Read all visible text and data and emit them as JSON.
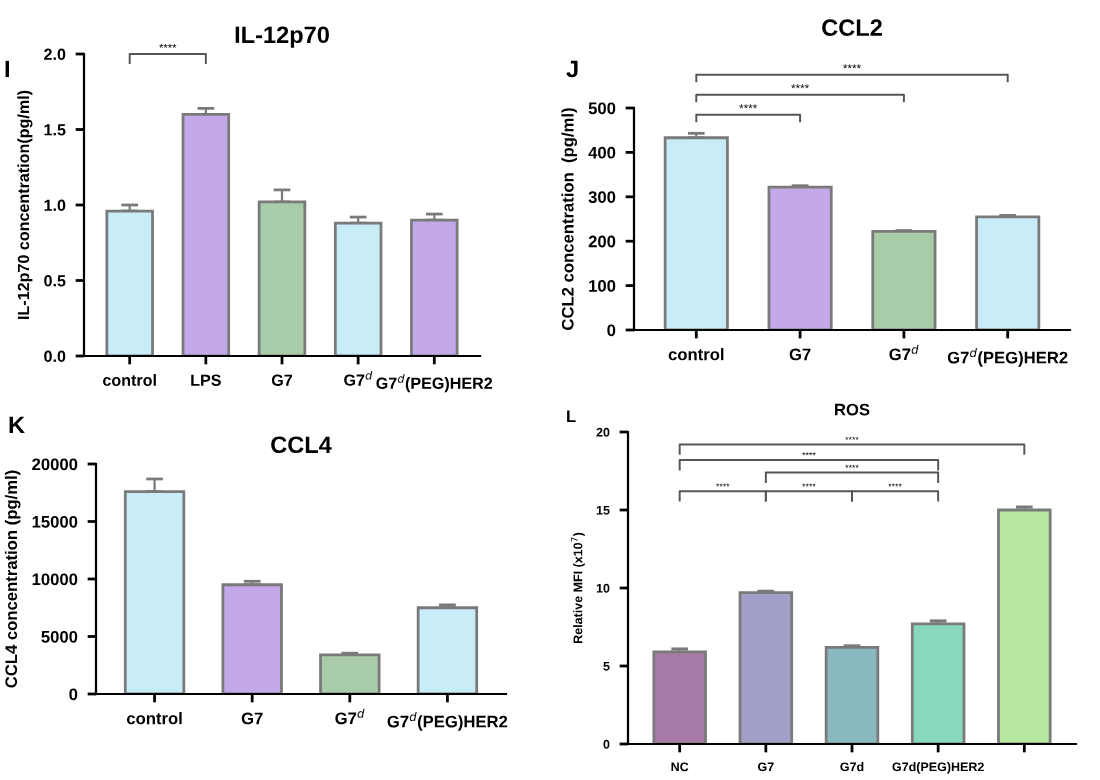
{
  "chart_data": [
    {
      "type": "bar",
      "title": "IL-12p70",
      "ylabel": "IL-12p70 concentration(pg/ml)",
      "categories": [
        "control",
        "LPS",
        "G7",
        "G7$^{d}$",
        "G7$^{d}$(PEG)HER2"
      ],
      "values": [
        0.96,
        1.6,
        1.02,
        0.88,
        0.9
      ],
      "errors": [
        0.04,
        0.04,
        0.08,
        0.04,
        0.04
      ],
      "colors": [
        "#c8ecf8",
        "#c3a9ea",
        "#a8cca8",
        "#c8ecf8",
        "#c3a9ea"
      ],
      "ylim": [
        0,
        2
      ],
      "yticks": [
        {
          "value": 0,
          "label": "0.0"
        },
        0.5,
        {
          "value": 1,
          "label": "1.0"
        },
        1.5,
        {
          "value": 2,
          "label": "2.0"
        }
      ],
      "grid": false,
      "legend": false,
      "annotations": [
        "I",
        "****"
      ]
    },
    {
      "type": "bar",
      "title": "CCL2",
      "ylabel": "CCL2 concentration  (pg/ml)",
      "categories": [
        "control",
        "G7",
        "G7$^{d}$",
        "G7$^{d}$(PEG)HER2"
      ],
      "values": [
        433,
        322,
        222,
        255
      ],
      "errors": [
        10,
        3,
        2,
        3
      ],
      "colors": [
        "#c8ecf8",
        "#c3a9ea",
        "#a8cca8",
        "#c8ecf8"
      ],
      "ylim": [
        0,
        500
      ],
      "yticks": [
        0,
        100,
        200,
        300,
        400,
        500
      ],
      "grid": false,
      "legend": false,
      "annotations": [
        "J",
        "****",
        "****",
        "****"
      ]
    },
    {
      "type": "bar",
      "title": "CCL4",
      "ylabel": "CCL4 concentration (pg/ml)",
      "categories": [
        "control",
        "G7",
        "G7$^{d}$",
        "G7$^{d}$(PEG)HER2"
      ],
      "values": [
        17600,
        9500,
        3400,
        7500
      ],
      "errors": [
        1100,
        300,
        150,
        250
      ],
      "colors": [
        "#c8ecf8",
        "#c3a9ea",
        "#a8cca8",
        "#c8ecf8"
      ],
      "ylim": [
        0,
        20000
      ],
      "yticks": [
        0,
        5000,
        10000,
        15000,
        20000
      ],
      "grid": false,
      "legend": false,
      "annotations": [
        "K"
      ]
    },
    {
      "type": "bar",
      "title": "ROS",
      "ylabel": "Relative MFI (x10$^{7}$)",
      "categories": [
        "NC",
        "G7",
        "G7d",
        "G7d(PEG)HER2",
        null
      ],
      "values": [
        5.9,
        9.7,
        6.2,
        7.7,
        15.0
      ],
      "errors": [
        0.2,
        0.1,
        0.1,
        0.2,
        0.2
      ],
      "colors": [
        "#a67aa6",
        "#a0a0c8",
        "#8ab8c0",
        "#88d8c0",
        "#b8e8a0"
      ],
      "ylim": [
        0,
        20
      ],
      "yticks": [
        0,
        5,
        10,
        15,
        20
      ],
      "grid": false,
      "legend": false,
      "annotations": [
        "L",
        "****",
        "****",
        "****",
        "****",
        "****",
        "****"
      ]
    }
  ]
}
